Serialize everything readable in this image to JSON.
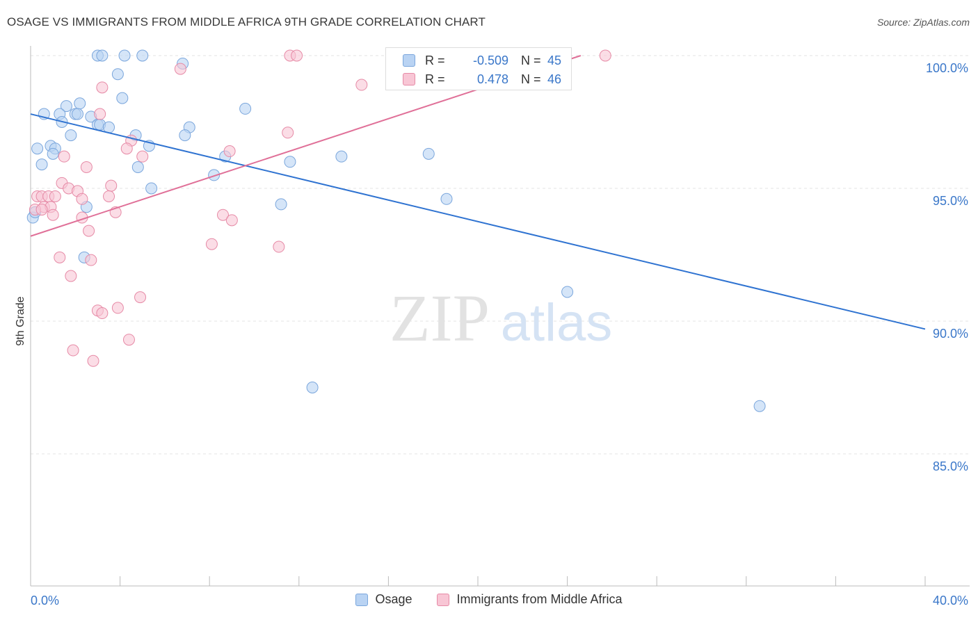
{
  "title": "OSAGE VS IMMIGRANTS FROM MIDDLE AFRICA 9TH GRADE CORRELATION CHART",
  "source": "Source: ZipAtlas.com",
  "watermark": {
    "zip": "ZIP",
    "atlas": "atlas"
  },
  "stats_box": {
    "osage": {
      "r_label": "R =",
      "r_value": "-0.509",
      "n_label": "N =",
      "n_value": "45"
    },
    "immigrants": {
      "r_label": "R =",
      "r_value": "0.478",
      "n_label": "N =",
      "n_value": "46"
    }
  },
  "colors": {
    "blue_fill": "#b9d3f3",
    "blue_stroke": "#7aa6dc",
    "blue_line": "#2f73d1",
    "pink_fill": "#f8c6d5",
    "pink_stroke": "#e68aa6",
    "pink_line": "#e07098",
    "axis_label": "#3a77c9",
    "grid": "#e3e3e3"
  },
  "chart_data": {
    "type": "scatter",
    "title": "OSAGE VS IMMIGRANTS FROM MIDDLE AFRICA 9TH GRADE CORRELATION CHART",
    "xlabel": "",
    "ylabel": "9th Grade",
    "xlim": [
      0,
      40
    ],
    "ylim": [
      80.5,
      100.8
    ],
    "x_tick_labels": [
      "0.0%",
      "40.0%"
    ],
    "y_ticks": [
      85,
      90,
      95,
      100
    ],
    "y_tick_labels": [
      "85.0%",
      "90.0%",
      "95.0%",
      "100.0%"
    ],
    "grid": true,
    "legend": [
      "Osage",
      "Immigrants from Middle Africa"
    ],
    "series": [
      {
        "name": "Osage",
        "points": [
          [
            3.0,
            100.0
          ],
          [
            3.2,
            100.0
          ],
          [
            4.2,
            100.0
          ],
          [
            5.0,
            100.0
          ],
          [
            6.8,
            99.7
          ],
          [
            3.9,
            99.3
          ],
          [
            4.1,
            98.4
          ],
          [
            2.2,
            98.2
          ],
          [
            1.6,
            98.1
          ],
          [
            9.6,
            98.0
          ],
          [
            0.6,
            97.8
          ],
          [
            1.3,
            97.8
          ],
          [
            2.0,
            97.8
          ],
          [
            2.1,
            97.8
          ],
          [
            2.7,
            97.7
          ],
          [
            1.4,
            97.5
          ],
          [
            3.0,
            97.4
          ],
          [
            3.1,
            97.4
          ],
          [
            3.5,
            97.3
          ],
          [
            7.1,
            97.3
          ],
          [
            4.7,
            97.0
          ],
          [
            6.9,
            97.0
          ],
          [
            1.8,
            97.0
          ],
          [
            0.9,
            96.6
          ],
          [
            5.3,
            96.6
          ],
          [
            0.3,
            96.5
          ],
          [
            1.1,
            96.5
          ],
          [
            8.7,
            96.2
          ],
          [
            13.9,
            96.2
          ],
          [
            1.0,
            96.3
          ],
          [
            17.8,
            96.3
          ],
          [
            11.6,
            96.0
          ],
          [
            0.5,
            95.9
          ],
          [
            4.8,
            95.8
          ],
          [
            8.2,
            95.5
          ],
          [
            5.4,
            95.0
          ],
          [
            18.6,
            94.6
          ],
          [
            2.5,
            94.3
          ],
          [
            11.2,
            94.4
          ],
          [
            0.1,
            93.9
          ],
          [
            2.4,
            92.4
          ],
          [
            24.0,
            91.1
          ],
          [
            12.6,
            87.5
          ],
          [
            32.6,
            86.8
          ],
          [
            0.2,
            94.1
          ]
        ]
      },
      {
        "name": "Immigrants from Middle Africa",
        "points": [
          [
            11.6,
            100.0
          ],
          [
            11.9,
            100.0
          ],
          [
            25.7,
            100.0
          ],
          [
            6.7,
            99.5
          ],
          [
            14.8,
            98.9
          ],
          [
            3.2,
            98.8
          ],
          [
            3.1,
            97.8
          ],
          [
            11.5,
            97.1
          ],
          [
            4.5,
            96.8
          ],
          [
            8.9,
            96.4
          ],
          [
            4.3,
            96.5
          ],
          [
            5.0,
            96.2
          ],
          [
            1.5,
            96.2
          ],
          [
            2.5,
            95.8
          ],
          [
            1.4,
            95.2
          ],
          [
            3.6,
            95.1
          ],
          [
            1.7,
            95.0
          ],
          [
            2.1,
            94.9
          ],
          [
            0.3,
            94.7
          ],
          [
            0.5,
            94.7
          ],
          [
            0.8,
            94.7
          ],
          [
            1.1,
            94.7
          ],
          [
            3.5,
            94.7
          ],
          [
            2.3,
            94.6
          ],
          [
            0.6,
            94.3
          ],
          [
            0.9,
            94.3
          ],
          [
            0.2,
            94.2
          ],
          [
            0.5,
            94.2
          ],
          [
            3.8,
            94.1
          ],
          [
            8.6,
            94.0
          ],
          [
            1.0,
            94.0
          ],
          [
            2.3,
            93.9
          ],
          [
            9.0,
            93.8
          ],
          [
            2.6,
            93.4
          ],
          [
            8.1,
            92.9
          ],
          [
            11.1,
            92.8
          ],
          [
            1.3,
            92.4
          ],
          [
            2.7,
            92.3
          ],
          [
            1.8,
            91.7
          ],
          [
            4.9,
            90.9
          ],
          [
            3.9,
            90.5
          ],
          [
            3.0,
            90.4
          ],
          [
            3.2,
            90.3
          ],
          [
            4.4,
            89.3
          ],
          [
            1.9,
            88.9
          ],
          [
            2.8,
            88.5
          ]
        ]
      }
    ],
    "trend_lines": [
      {
        "name": "Osage",
        "x": [
          0,
          40
        ],
        "y": [
          97.8,
          89.7
        ]
      },
      {
        "name": "Immigrants from Middle Africa",
        "x": [
          0,
          24.6
        ],
        "y": [
          93.2,
          100.0
        ]
      }
    ]
  }
}
